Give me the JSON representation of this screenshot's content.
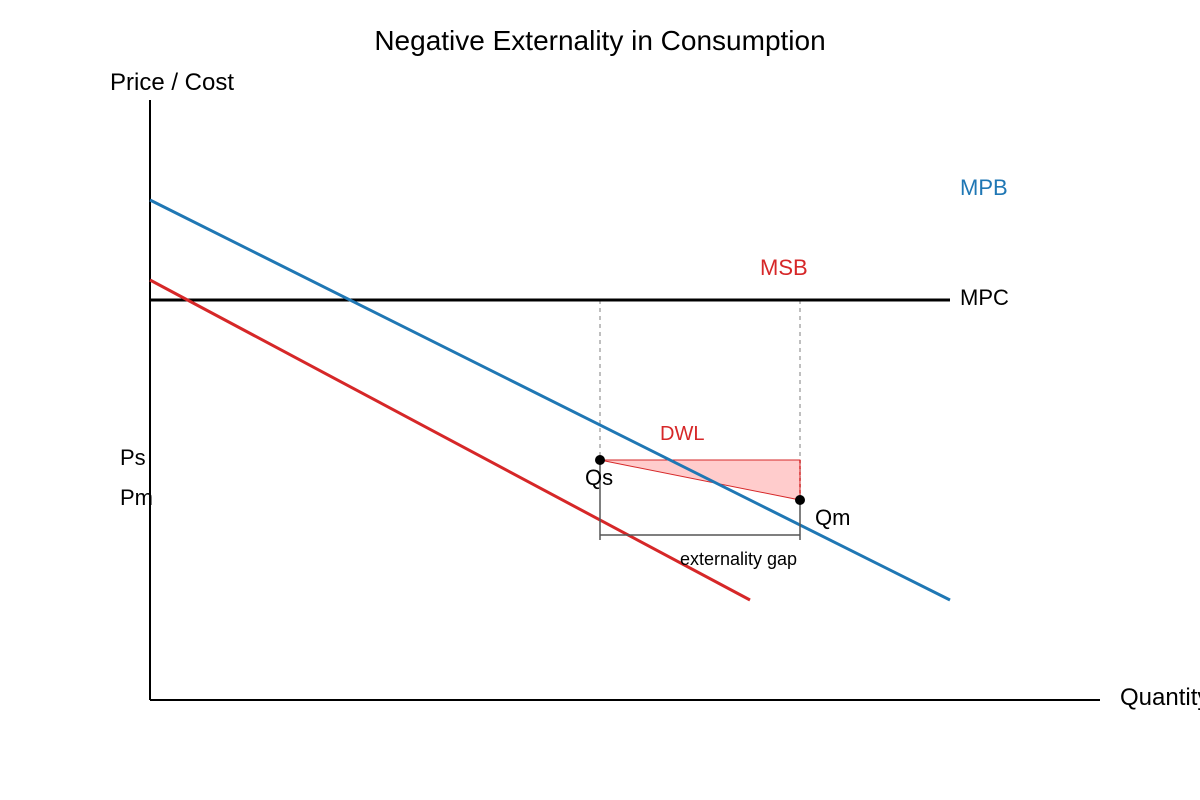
{
  "title": "Negative Externality in Consumption",
  "axes": {
    "y_label": "Price / Cost",
    "x_label": "Quantity"
  },
  "curves": {
    "mpb": {
      "label": "MPB",
      "color": "#1f77b4"
    },
    "msb": {
      "label": "MSB",
      "color": "#d62728"
    },
    "mpc": {
      "label": "MPC",
      "color": "#000000"
    }
  },
  "dwl": {
    "label": "DWL",
    "color": "#d62728",
    "fill": "#ffcccc"
  },
  "points": {
    "social_q": "Qs",
    "market_q": "Qm",
    "social_p": "Ps",
    "market_p": "Pm"
  },
  "gap": {
    "label": "externality gap"
  }
}
